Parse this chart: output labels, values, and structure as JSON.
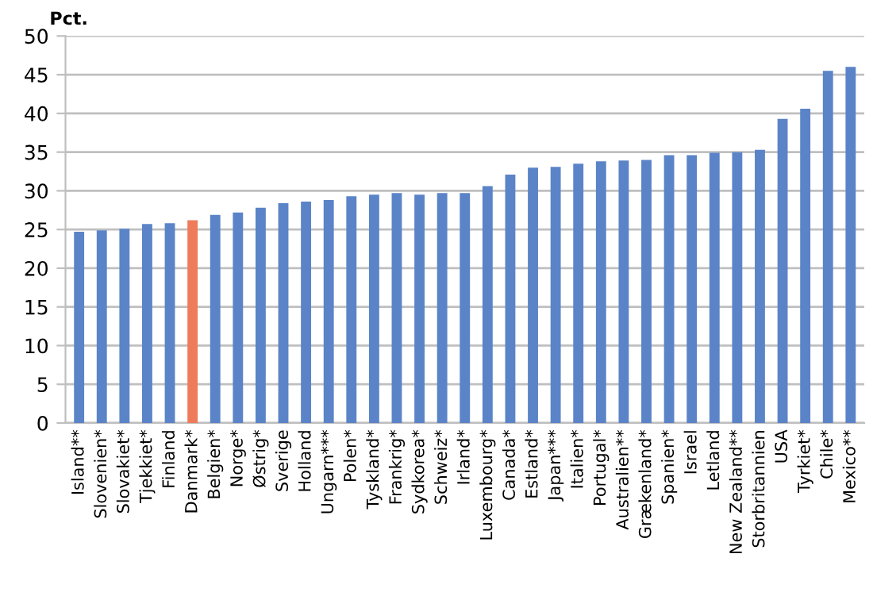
{
  "chart_data": {
    "type": "bar",
    "ylabel": "Pct.",
    "categories": [
      "Island**",
      "Slovenien*",
      "Slovakiet*",
      "Tjekkiet*",
      "Finland",
      "Danmark*",
      "Belgien*",
      "Norge*",
      "Østrig*",
      "Sverige",
      "Holland",
      "Ungarn***",
      "Polen*",
      "Tyskland*",
      "Frankrig*",
      "Sydkorea*",
      "Schweiz*",
      "Irland*",
      "Luxembourg*",
      "Canada*",
      "Estland*",
      "Japan***",
      "Italien*",
      "Portugal*",
      "Australien**",
      "Grækenland*",
      "Spanien*",
      "Israel",
      "Letland",
      "New Zealand**",
      "Storbritannien",
      "USA",
      "Tyrkiet*",
      "Chile*",
      "Mexico**"
    ],
    "values": [
      24.7,
      24.9,
      25.1,
      25.7,
      25.8,
      26.2,
      26.9,
      27.2,
      27.8,
      28.4,
      28.6,
      28.8,
      29.3,
      29.5,
      29.7,
      29.5,
      29.7,
      29.7,
      30.6,
      32.1,
      33.0,
      33.1,
      33.5,
      33.8,
      33.9,
      34.0,
      34.6,
      34.6,
      34.9,
      35.0,
      35.3,
      39.3,
      40.6,
      45.5,
      46.0
    ],
    "colors": [
      "#5b84c8",
      "#5b84c8",
      "#5b84c8",
      "#5b84c8",
      "#5b84c8",
      "#ee7b5a",
      "#5b84c8",
      "#5b84c8",
      "#5b84c8",
      "#5b84c8",
      "#5b84c8",
      "#5b84c8",
      "#5b84c8",
      "#5b84c8",
      "#5b84c8",
      "#5b84c8",
      "#5b84c8",
      "#5b84c8",
      "#5b84c8",
      "#5b84c8",
      "#5b84c8",
      "#5b84c8",
      "#5b84c8",
      "#5b84c8",
      "#5b84c8",
      "#5b84c8",
      "#5b84c8",
      "#5b84c8",
      "#5b84c8",
      "#5b84c8",
      "#5b84c8",
      "#5b84c8",
      "#5b84c8",
      "#5b84c8",
      "#5b84c8"
    ],
    "ylim": [
      0,
      50
    ],
    "yticks": [
      0,
      5,
      10,
      15,
      20,
      25,
      30,
      35,
      40,
      45,
      50
    ],
    "grid": "y"
  }
}
